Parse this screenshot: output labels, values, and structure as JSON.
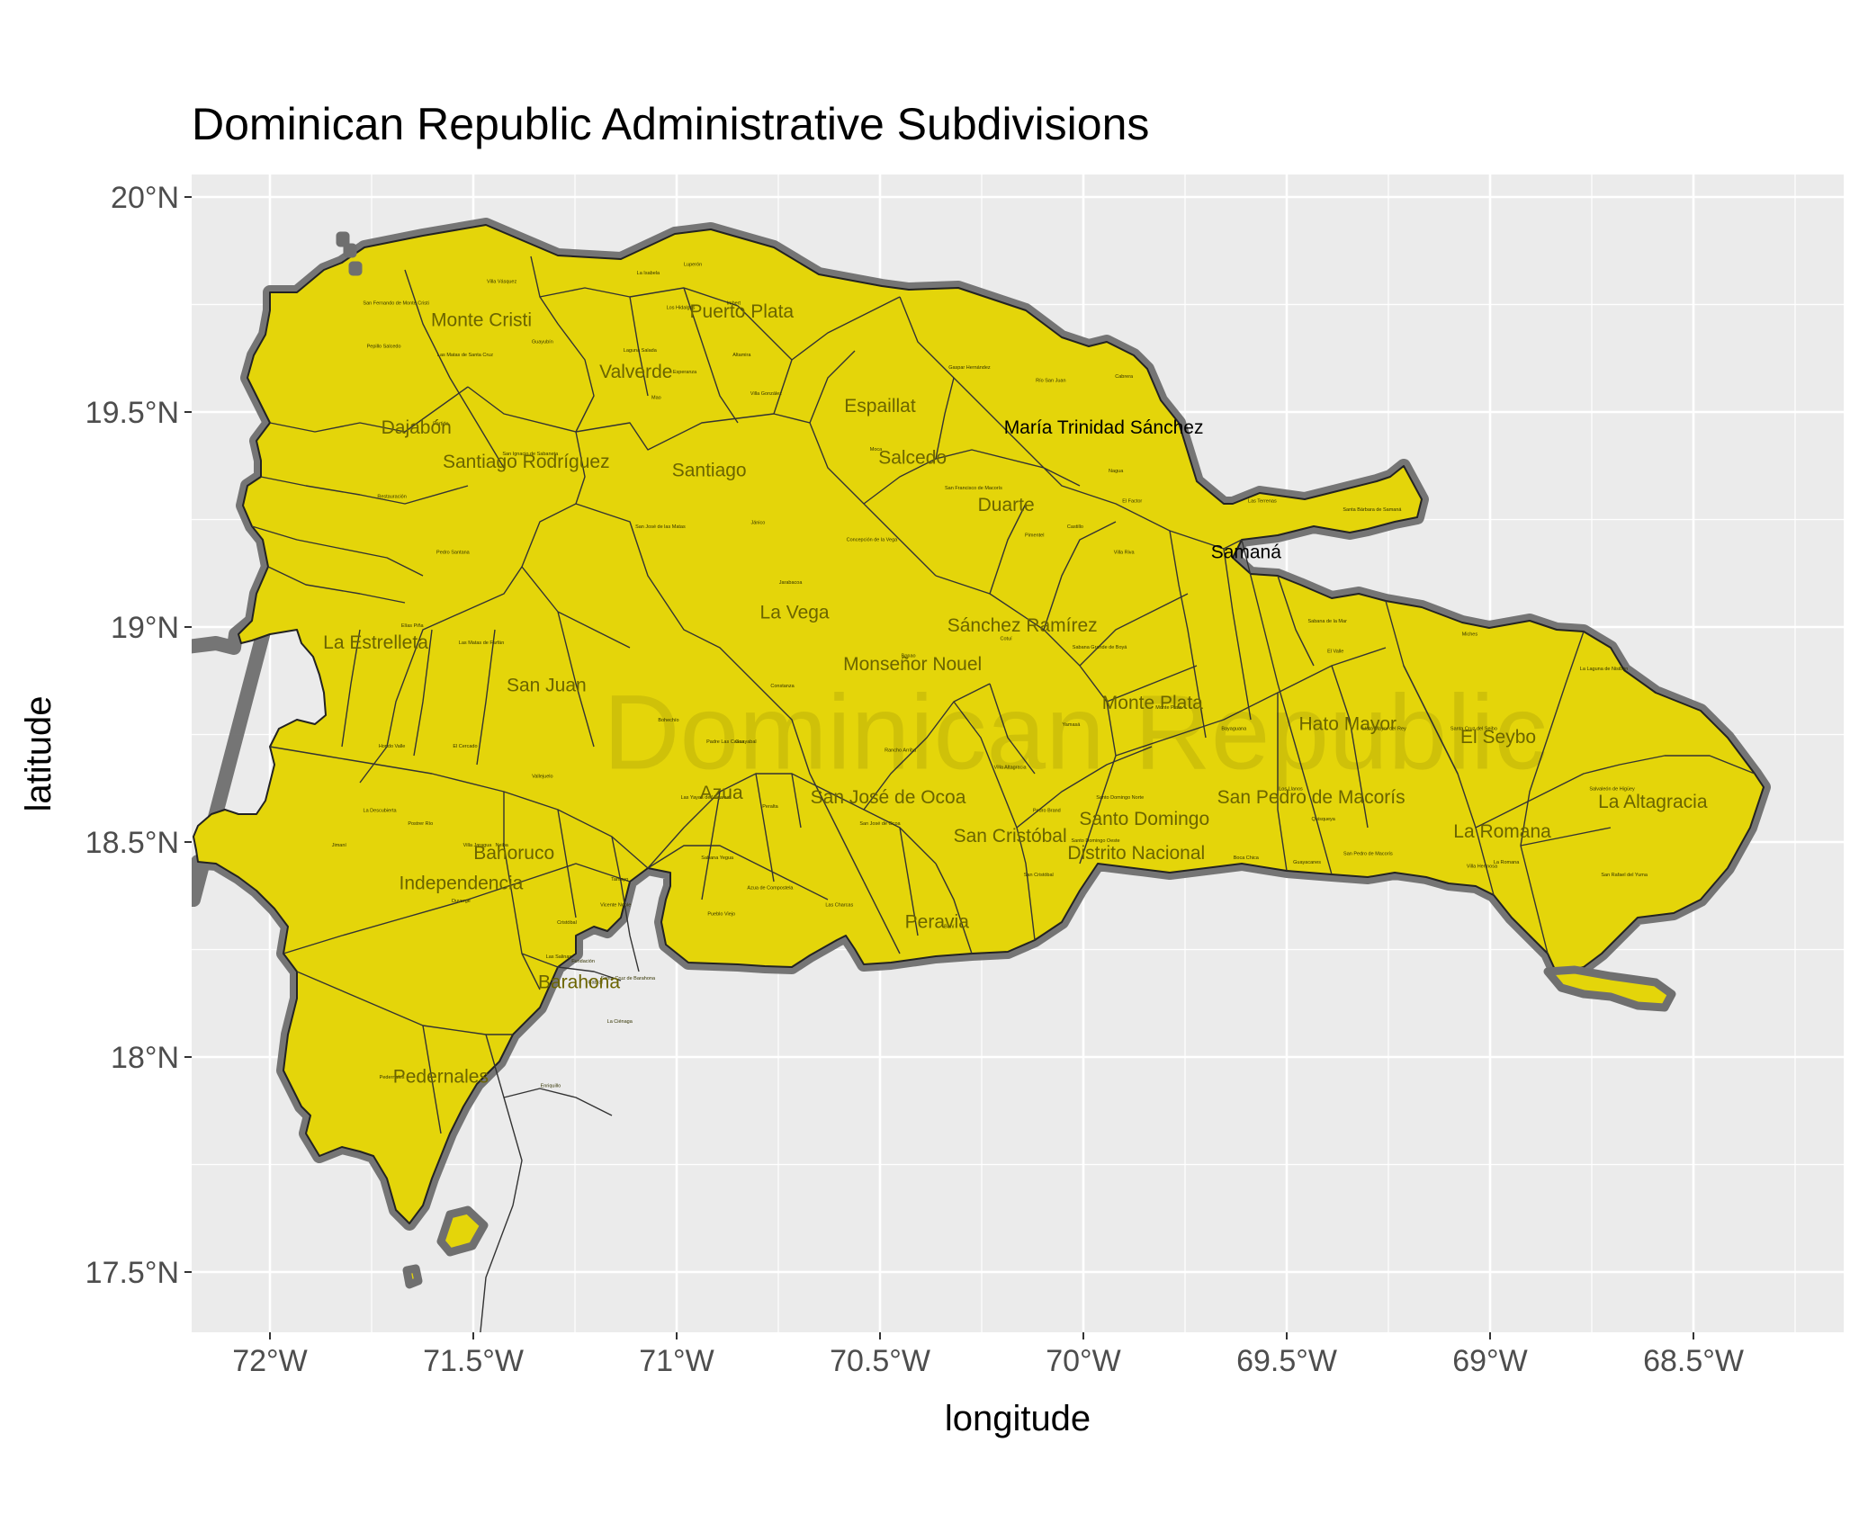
{
  "title": "Dominican Republic Administrative Subdivisions",
  "watermark": "Dominican Republic",
  "x_axis": {
    "label": "longitude",
    "ticks": [
      "72°W",
      "71.5°W",
      "71°W",
      "70.5°W",
      "70°W",
      "69.5°W",
      "69°W",
      "68.5°W"
    ]
  },
  "y_axis": {
    "label": "latitude",
    "ticks": [
      "20°N",
      "19.5°N",
      "19°N",
      "18.5°N",
      "18°N",
      "17.5°N"
    ]
  },
  "colors": {
    "panel": "#ebebeb",
    "grid": "#ffffff",
    "land": "#e4d50a",
    "outline_halo": "#6f6f6f",
    "borders": "#333333"
  },
  "chart_data": {
    "type": "map",
    "lon_range": [
      -72.2,
      -68.2
    ],
    "lat_range": [
      17.35,
      20.05
    ],
    "provinces": [
      {
        "name": "Monte Cristi",
        "lon": -71.48,
        "lat": 19.7
      },
      {
        "name": "Puerto Plata",
        "lon": -70.84,
        "lat": 19.72
      },
      {
        "name": "Valverde",
        "lon": -71.1,
        "lat": 19.58
      },
      {
        "name": "Espaillat",
        "lon": -70.5,
        "lat": 19.5
      },
      {
        "name": "María Trinidad Sánchez",
        "lon": -69.95,
        "lat": 19.45,
        "dark": true
      },
      {
        "name": "Dajabón",
        "lon": -71.64,
        "lat": 19.45
      },
      {
        "name": "Salcedo",
        "lon": -70.42,
        "lat": 19.38
      },
      {
        "name": "Santiago Rodríguez",
        "lon": -71.37,
        "lat": 19.37
      },
      {
        "name": "Santiago",
        "lon": -70.92,
        "lat": 19.35
      },
      {
        "name": "Duarte",
        "lon": -70.19,
        "lat": 19.27
      },
      {
        "name": "Samaná",
        "lon": -69.6,
        "lat": 19.16,
        "dark": true
      },
      {
        "name": "La Vega",
        "lon": -70.71,
        "lat": 19.02
      },
      {
        "name": "Sánchez Ramírez",
        "lon": -70.15,
        "lat": 18.99
      },
      {
        "name": "La Estrelleta",
        "lon": -71.74,
        "lat": 18.95
      },
      {
        "name": "Monseñor Nouel",
        "lon": -70.42,
        "lat": 18.9
      },
      {
        "name": "San Juan",
        "lon": -71.32,
        "lat": 18.85
      },
      {
        "name": "Monte Plata",
        "lon": -69.83,
        "lat": 18.81
      },
      {
        "name": "Hato Mayor",
        "lon": -69.35,
        "lat": 18.76
      },
      {
        "name": "El Seybo",
        "lon": -68.98,
        "lat": 18.73
      },
      {
        "name": "Azua",
        "lon": -70.89,
        "lat": 18.6
      },
      {
        "name": "San José de Ocoa",
        "lon": -70.48,
        "lat": 18.59
      },
      {
        "name": "San Pedro de Macorís",
        "lon": -69.44,
        "lat": 18.59
      },
      {
        "name": "La Altagracia",
        "lon": -68.6,
        "lat": 18.58
      },
      {
        "name": "Santo Domingo",
        "lon": -69.85,
        "lat": 18.54
      },
      {
        "name": "La Romana",
        "lon": -68.97,
        "lat": 18.51
      },
      {
        "name": "San Cristóbal",
        "lon": -70.18,
        "lat": 18.5
      },
      {
        "name": "Distrito Nacional",
        "lon": -69.87,
        "lat": 18.46
      },
      {
        "name": "Bahoruco",
        "lon": -71.4,
        "lat": 18.46
      },
      {
        "name": "Independencia",
        "lon": -71.53,
        "lat": 18.39
      },
      {
        "name": "Peravia",
        "lon": -70.36,
        "lat": 18.3
      },
      {
        "name": "Barahona",
        "lon": -71.24,
        "lat": 18.16
      },
      {
        "name": "Pedernales",
        "lon": -71.58,
        "lat": 17.94
      }
    ],
    "municipalities": [
      {
        "name": "Villa Vásquez",
        "lon": -71.43,
        "lat": 19.8
      },
      {
        "name": "La Isabela",
        "lon": -71.07,
        "lat": 19.82
      },
      {
        "name": "Luperón",
        "lon": -70.96,
        "lat": 19.84
      },
      {
        "name": "San Fernando de Monte Cristi",
        "lon": -71.69,
        "lat": 19.75
      },
      {
        "name": "Los Hidalgos",
        "lon": -70.99,
        "lat": 19.74
      },
      {
        "name": "Imbert",
        "lon": -70.86,
        "lat": 19.75
      },
      {
        "name": "Guayubín",
        "lon": -71.33,
        "lat": 19.66
      },
      {
        "name": "Laguna Salada",
        "lon": -71.09,
        "lat": 19.64
      },
      {
        "name": "Pepillo Salcedo",
        "lon": -71.72,
        "lat": 19.65
      },
      {
        "name": "Las Matas de Santa Cruz",
        "lon": -71.52,
        "lat": 19.63
      },
      {
        "name": "Esperanza",
        "lon": -70.98,
        "lat": 19.59
      },
      {
        "name": "Altamira",
        "lon": -70.84,
        "lat": 19.63
      },
      {
        "name": "Gaspar Hernández",
        "lon": -70.28,
        "lat": 19.6
      },
      {
        "name": "Río San Juan",
        "lon": -70.08,
        "lat": 19.57
      },
      {
        "name": "Cabrera",
        "lon": -69.9,
        "lat": 19.58
      },
      {
        "name": "Villa González",
        "lon": -70.78,
        "lat": 19.54
      },
      {
        "name": "Mao",
        "lon": -71.05,
        "lat": 19.53
      },
      {
        "name": "Partido",
        "lon": -71.58,
        "lat": 19.47
      },
      {
        "name": "Moca",
        "lon": -70.51,
        "lat": 19.41
      },
      {
        "name": "San Francisco de Macorís",
        "lon": -70.27,
        "lat": 19.32
      },
      {
        "name": "Nagua",
        "lon": -69.92,
        "lat": 19.36
      },
      {
        "name": "El Factor",
        "lon": -69.88,
        "lat": 19.29
      },
      {
        "name": "Las Terrenas",
        "lon": -69.56,
        "lat": 19.29
      },
      {
        "name": "Santa Bárbara de Samaná",
        "lon": -69.29,
        "lat": 19.27
      },
      {
        "name": "San Ignacio de Sabaneta",
        "lon": -71.36,
        "lat": 19.4
      },
      {
        "name": "Restauración",
        "lon": -71.7,
        "lat": 19.3
      },
      {
        "name": "Jánico",
        "lon": -70.8,
        "lat": 19.24
      },
      {
        "name": "San José de las Matas",
        "lon": -71.04,
        "lat": 19.23
      },
      {
        "name": "Concepción de la Vega",
        "lon": -70.52,
        "lat": 19.2
      },
      {
        "name": "Castillo",
        "lon": -70.02,
        "lat": 19.23
      },
      {
        "name": "Pimentel",
        "lon": -70.12,
        "lat": 19.21
      },
      {
        "name": "Villa Riva",
        "lon": -69.9,
        "lat": 19.17
      },
      {
        "name": "Pedro Santana",
        "lon": -71.55,
        "lat": 19.17
      },
      {
        "name": "Jarabacoa",
        "lon": -70.72,
        "lat": 19.1
      },
      {
        "name": "Cotuí",
        "lon": -70.19,
        "lat": 18.97
      },
      {
        "name": "Sabana Grande de Boyá",
        "lon": -69.96,
        "lat": 18.95
      },
      {
        "name": "Sabana de la Mar",
        "lon": -69.4,
        "lat": 19.01
      },
      {
        "name": "Miches",
        "lon": -69.05,
        "lat": 18.98
      },
      {
        "name": "Elías Piña",
        "lon": -71.65,
        "lat": 19.0
      },
      {
        "name": "Las Matas de Farfán",
        "lon": -71.48,
        "lat": 18.96
      },
      {
        "name": "Bonao",
        "lon": -70.43,
        "lat": 18.93
      },
      {
        "name": "El Valle",
        "lon": -69.38,
        "lat": 18.94
      },
      {
        "name": "Bohechío",
        "lon": -71.02,
        "lat": 18.78
      },
      {
        "name": "Padre Las Casas",
        "lon": -70.88,
        "lat": 18.73
      },
      {
        "name": "Constanza",
        "lon": -70.74,
        "lat": 18.86
      },
      {
        "name": "Yamasá",
        "lon": -70.03,
        "lat": 18.77
      },
      {
        "name": "Monte Plata",
        "lon": -69.79,
        "lat": 18.81
      },
      {
        "name": "Bayaguana",
        "lon": -69.63,
        "lat": 18.76
      },
      {
        "name": "Hato Mayor del Rey",
        "lon": -69.26,
        "lat": 18.76
      },
      {
        "name": "Santa Cruz del Seibo",
        "lon": -69.04,
        "lat": 18.76
      },
      {
        "name": "La Laguna de Nisibón",
        "lon": -68.72,
        "lat": 18.9
      },
      {
        "name": "El Cercado",
        "lon": -71.52,
        "lat": 18.72
      },
      {
        "name": "Hondo Valle",
        "lon": -71.7,
        "lat": 18.72
      },
      {
        "name": "Vallejuelo",
        "lon": -71.33,
        "lat": 18.65
      },
      {
        "name": "Guayabal",
        "lon": -70.83,
        "lat": 18.73
      },
      {
        "name": "Rancho Arriba",
        "lon": -70.45,
        "lat": 18.71
      },
      {
        "name": "Villa Altagracia",
        "lon": -70.18,
        "lat": 18.67
      },
      {
        "name": "Pedro Brand",
        "lon": -70.09,
        "lat": 18.57
      },
      {
        "name": "Santo Domingo Norte",
        "lon": -69.91,
        "lat": 18.6
      },
      {
        "name": "Salvaleón de Higüey",
        "lon": -68.7,
        "lat": 18.62
      },
      {
        "name": "La Descubierta",
        "lon": -71.73,
        "lat": 18.57
      },
      {
        "name": "Postrer Río",
        "lon": -71.63,
        "lat": 18.54
      },
      {
        "name": "Las Yayas de Viajama",
        "lon": -70.93,
        "lat": 18.6
      },
      {
        "name": "Peralta",
        "lon": -70.77,
        "lat": 18.58
      },
      {
        "name": "San José de Ocoa",
        "lon": -70.5,
        "lat": 18.54
      },
      {
        "name": "San Cristóbal",
        "lon": -70.11,
        "lat": 18.42
      },
      {
        "name": "Santo Domingo Oeste",
        "lon": -69.97,
        "lat": 18.5
      },
      {
        "name": "Boca Chica",
        "lon": -69.6,
        "lat": 18.46
      },
      {
        "name": "Los Llanos",
        "lon": -69.49,
        "lat": 18.62
      },
      {
        "name": "Quisqueya",
        "lon": -69.41,
        "lat": 18.55
      },
      {
        "name": "San Pedro de Macorís",
        "lon": -69.3,
        "lat": 18.47
      },
      {
        "name": "Guayacanes",
        "lon": -69.45,
        "lat": 18.45
      },
      {
        "name": "Villa Hermosa",
        "lon": -69.02,
        "lat": 18.44
      },
      {
        "name": "La Romana",
        "lon": -68.96,
        "lat": 18.45
      },
      {
        "name": "San Rafael del Yuma",
        "lon": -68.67,
        "lat": 18.42
      },
      {
        "name": "Jimaní",
        "lon": -71.83,
        "lat": 18.49
      },
      {
        "name": "Villa Jaragua",
        "lon": -71.49,
        "lat": 18.49
      },
      {
        "name": "Neiba",
        "lon": -71.43,
        "lat": 18.49
      },
      {
        "name": "Tamayo",
        "lon": -71.14,
        "lat": 18.41
      },
      {
        "name": "Sabana Yegua",
        "lon": -70.9,
        "lat": 18.46
      },
      {
        "name": "Azua de Compostela",
        "lon": -70.77,
        "lat": 18.39
      },
      {
        "name": "Baní",
        "lon": -70.33,
        "lat": 18.3
      },
      {
        "name": "Duvergé",
        "lon": -71.53,
        "lat": 18.36
      },
      {
        "name": "Cristóbal",
        "lon": -71.27,
        "lat": 18.31
      },
      {
        "name": "Vicente Noble",
        "lon": -71.15,
        "lat": 18.35
      },
      {
        "name": "Pueblo Viejo",
        "lon": -70.89,
        "lat": 18.33
      },
      {
        "name": "Las Charcas",
        "lon": -70.6,
        "lat": 18.35
      },
      {
        "name": "Fundación",
        "lon": -71.23,
        "lat": 18.22
      },
      {
        "name": "Las Salinas",
        "lon": -71.29,
        "lat": 18.23
      },
      {
        "name": "Cabral",
        "lon": -71.2,
        "lat": 18.17
      },
      {
        "name": "Santa Cruz de Barahona",
        "lon": -71.12,
        "lat": 18.18
      },
      {
        "name": "La Ciénaga",
        "lon": -71.14,
        "lat": 18.08
      },
      {
        "name": "Enriquillo",
        "lon": -71.31,
        "lat": 17.93
      },
      {
        "name": "Pedernales",
        "lon": -71.7,
        "lat": 17.95
      }
    ]
  }
}
